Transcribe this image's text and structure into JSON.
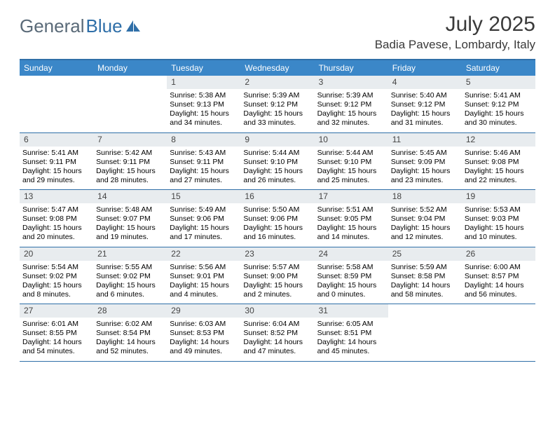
{
  "brand": {
    "part1": "General",
    "part2": "Blue"
  },
  "title": "July 2025",
  "location": "Badia Pavese, Lombardy, Italy",
  "colors": {
    "header_bg": "#3b87c8",
    "border": "#2f6fa8",
    "daynum_bg": "#e8ecef",
    "logo_gray": "#5a6a78",
    "logo_blue": "#2f6fa8"
  },
  "day_names": [
    "Sunday",
    "Monday",
    "Tuesday",
    "Wednesday",
    "Thursday",
    "Friday",
    "Saturday"
  ],
  "weeks": [
    [
      null,
      null,
      {
        "n": "1",
        "sr": "5:38 AM",
        "ss": "9:13 PM",
        "dl": "15 hours and 34 minutes."
      },
      {
        "n": "2",
        "sr": "5:39 AM",
        "ss": "9:12 PM",
        "dl": "15 hours and 33 minutes."
      },
      {
        "n": "3",
        "sr": "5:39 AM",
        "ss": "9:12 PM",
        "dl": "15 hours and 32 minutes."
      },
      {
        "n": "4",
        "sr": "5:40 AM",
        "ss": "9:12 PM",
        "dl": "15 hours and 31 minutes."
      },
      {
        "n": "5",
        "sr": "5:41 AM",
        "ss": "9:12 PM",
        "dl": "15 hours and 30 minutes."
      }
    ],
    [
      {
        "n": "6",
        "sr": "5:41 AM",
        "ss": "9:11 PM",
        "dl": "15 hours and 29 minutes."
      },
      {
        "n": "7",
        "sr": "5:42 AM",
        "ss": "9:11 PM",
        "dl": "15 hours and 28 minutes."
      },
      {
        "n": "8",
        "sr": "5:43 AM",
        "ss": "9:11 PM",
        "dl": "15 hours and 27 minutes."
      },
      {
        "n": "9",
        "sr": "5:44 AM",
        "ss": "9:10 PM",
        "dl": "15 hours and 26 minutes."
      },
      {
        "n": "10",
        "sr": "5:44 AM",
        "ss": "9:10 PM",
        "dl": "15 hours and 25 minutes."
      },
      {
        "n": "11",
        "sr": "5:45 AM",
        "ss": "9:09 PM",
        "dl": "15 hours and 23 minutes."
      },
      {
        "n": "12",
        "sr": "5:46 AM",
        "ss": "9:08 PM",
        "dl": "15 hours and 22 minutes."
      }
    ],
    [
      {
        "n": "13",
        "sr": "5:47 AM",
        "ss": "9:08 PM",
        "dl": "15 hours and 20 minutes."
      },
      {
        "n": "14",
        "sr": "5:48 AM",
        "ss": "9:07 PM",
        "dl": "15 hours and 19 minutes."
      },
      {
        "n": "15",
        "sr": "5:49 AM",
        "ss": "9:06 PM",
        "dl": "15 hours and 17 minutes."
      },
      {
        "n": "16",
        "sr": "5:50 AM",
        "ss": "9:06 PM",
        "dl": "15 hours and 16 minutes."
      },
      {
        "n": "17",
        "sr": "5:51 AM",
        "ss": "9:05 PM",
        "dl": "15 hours and 14 minutes."
      },
      {
        "n": "18",
        "sr": "5:52 AM",
        "ss": "9:04 PM",
        "dl": "15 hours and 12 minutes."
      },
      {
        "n": "19",
        "sr": "5:53 AM",
        "ss": "9:03 PM",
        "dl": "15 hours and 10 minutes."
      }
    ],
    [
      {
        "n": "20",
        "sr": "5:54 AM",
        "ss": "9:02 PM",
        "dl": "15 hours and 8 minutes."
      },
      {
        "n": "21",
        "sr": "5:55 AM",
        "ss": "9:02 PM",
        "dl": "15 hours and 6 minutes."
      },
      {
        "n": "22",
        "sr": "5:56 AM",
        "ss": "9:01 PM",
        "dl": "15 hours and 4 minutes."
      },
      {
        "n": "23",
        "sr": "5:57 AM",
        "ss": "9:00 PM",
        "dl": "15 hours and 2 minutes."
      },
      {
        "n": "24",
        "sr": "5:58 AM",
        "ss": "8:59 PM",
        "dl": "15 hours and 0 minutes."
      },
      {
        "n": "25",
        "sr": "5:59 AM",
        "ss": "8:58 PM",
        "dl": "14 hours and 58 minutes."
      },
      {
        "n": "26",
        "sr": "6:00 AM",
        "ss": "8:57 PM",
        "dl": "14 hours and 56 minutes."
      }
    ],
    [
      {
        "n": "27",
        "sr": "6:01 AM",
        "ss": "8:55 PM",
        "dl": "14 hours and 54 minutes."
      },
      {
        "n": "28",
        "sr": "6:02 AM",
        "ss": "8:54 PM",
        "dl": "14 hours and 52 minutes."
      },
      {
        "n": "29",
        "sr": "6:03 AM",
        "ss": "8:53 PM",
        "dl": "14 hours and 49 minutes."
      },
      {
        "n": "30",
        "sr": "6:04 AM",
        "ss": "8:52 PM",
        "dl": "14 hours and 47 minutes."
      },
      {
        "n": "31",
        "sr": "6:05 AM",
        "ss": "8:51 PM",
        "dl": "14 hours and 45 minutes."
      },
      null,
      null
    ]
  ]
}
